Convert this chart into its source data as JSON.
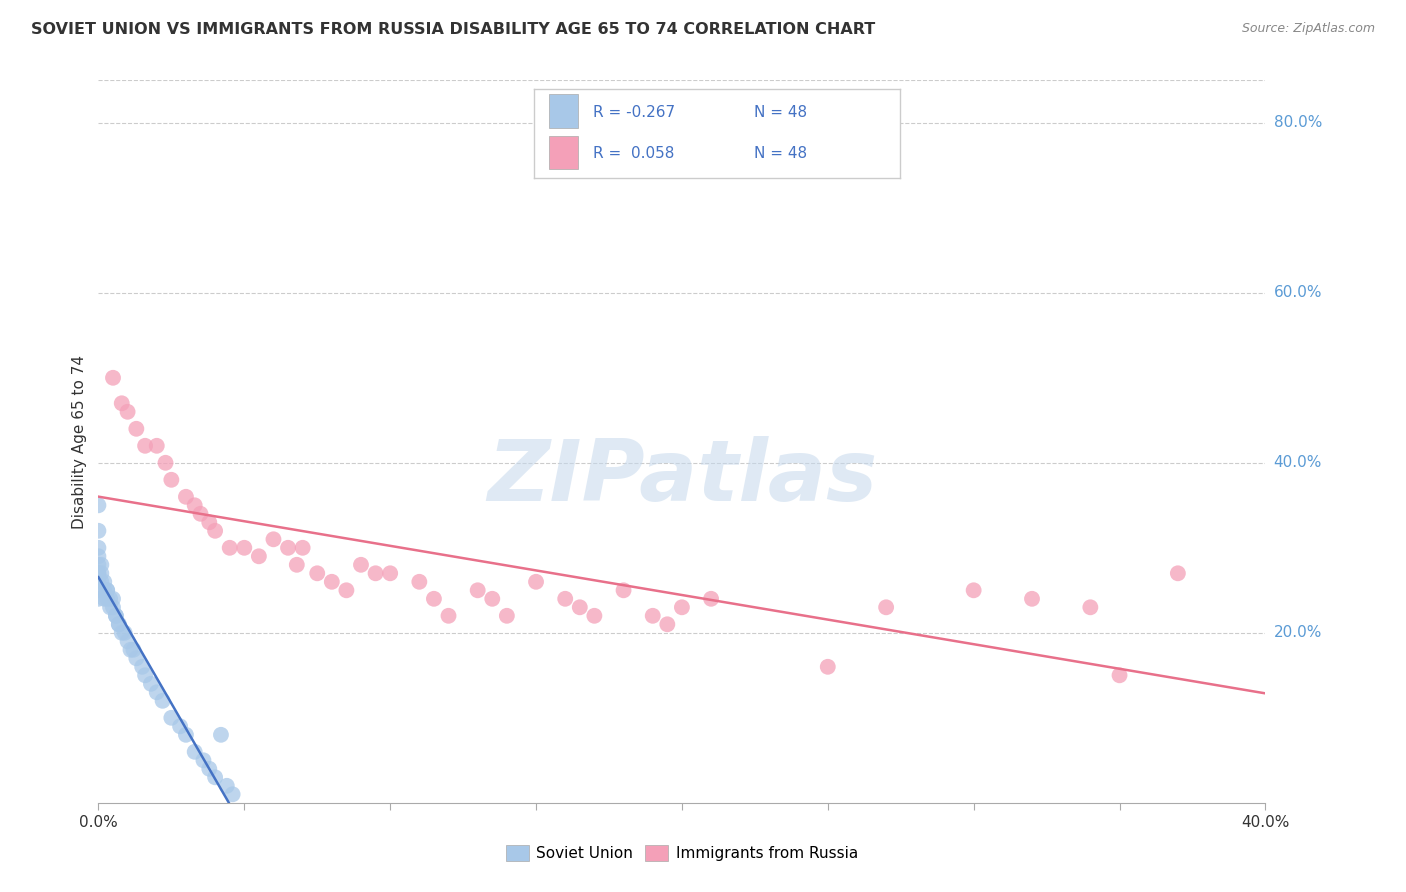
{
  "title": "SOVIET UNION VS IMMIGRANTS FROM RUSSIA DISABILITY AGE 65 TO 74 CORRELATION CHART",
  "source": "Source: ZipAtlas.com",
  "ylabel": "Disability Age 65 to 74",
  "legend_r1": "R = -0.267",
  "legend_n1": "N = 48",
  "legend_r2": "R =  0.058",
  "legend_n2": "N = 48",
  "legend1_label": "Soviet Union",
  "legend2_label": "Immigrants from Russia",
  "blue_color": "#a8c8e8",
  "pink_color": "#f4a0b8",
  "blue_line_color": "#4472c4",
  "pink_line_color": "#e8708a",
  "blue_dash_color": "#8899cc",
  "watermark_color": "#c5d8ec",
  "xlim": [
    0.0,
    0.4
  ],
  "ylim": [
    0.0,
    0.85
  ],
  "y_ticks_right": [
    0.2,
    0.4,
    0.6,
    0.8
  ],
  "soviet_x": [
    0.0,
    0.0,
    0.0,
    0.0,
    0.0,
    0.0,
    0.0,
    0.0,
    0.0,
    0.0,
    0.001,
    0.001,
    0.001,
    0.002,
    0.002,
    0.002,
    0.003,
    0.003,
    0.003,
    0.004,
    0.004,
    0.005,
    0.005,
    0.006,
    0.006,
    0.007,
    0.007,
    0.008,
    0.009,
    0.01,
    0.011,
    0.012,
    0.013,
    0.015,
    0.016,
    0.018,
    0.02,
    0.022,
    0.025,
    0.028,
    0.03,
    0.033,
    0.036,
    0.038,
    0.04,
    0.042,
    0.044,
    0.046
  ],
  "soviet_y": [
    0.35,
    0.32,
    0.3,
    0.29,
    0.28,
    0.27,
    0.27,
    0.26,
    0.25,
    0.24,
    0.28,
    0.27,
    0.26,
    0.26,
    0.25,
    0.24,
    0.25,
    0.25,
    0.24,
    0.24,
    0.23,
    0.24,
    0.23,
    0.22,
    0.22,
    0.21,
    0.21,
    0.2,
    0.2,
    0.19,
    0.18,
    0.18,
    0.17,
    0.16,
    0.15,
    0.14,
    0.13,
    0.12,
    0.1,
    0.09,
    0.08,
    0.06,
    0.05,
    0.04,
    0.03,
    0.08,
    0.02,
    0.01
  ],
  "russia_x": [
    0.005,
    0.008,
    0.01,
    0.013,
    0.016,
    0.02,
    0.023,
    0.025,
    0.03,
    0.033,
    0.035,
    0.038,
    0.04,
    0.045,
    0.05,
    0.055,
    0.06,
    0.065,
    0.068,
    0.07,
    0.075,
    0.08,
    0.085,
    0.09,
    0.095,
    0.1,
    0.11,
    0.115,
    0.12,
    0.13,
    0.135,
    0.14,
    0.15,
    0.16,
    0.165,
    0.17,
    0.18,
    0.19,
    0.195,
    0.2,
    0.21,
    0.25,
    0.27,
    0.3,
    0.32,
    0.34,
    0.35,
    0.37
  ],
  "russia_y": [
    0.5,
    0.47,
    0.46,
    0.44,
    0.42,
    0.42,
    0.4,
    0.38,
    0.36,
    0.35,
    0.34,
    0.33,
    0.32,
    0.3,
    0.3,
    0.29,
    0.31,
    0.3,
    0.28,
    0.3,
    0.27,
    0.26,
    0.25,
    0.28,
    0.27,
    0.27,
    0.26,
    0.24,
    0.22,
    0.25,
    0.24,
    0.22,
    0.26,
    0.24,
    0.23,
    0.22,
    0.25,
    0.22,
    0.21,
    0.23,
    0.24,
    0.16,
    0.23,
    0.25,
    0.24,
    0.23,
    0.15,
    0.27
  ]
}
